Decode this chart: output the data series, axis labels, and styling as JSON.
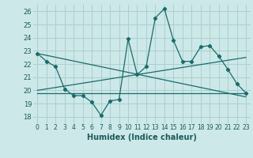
{
  "xlabel": "Humidex (Indice chaleur)",
  "background_color": "#cde8e8",
  "grid_color": "#aacfcf",
  "line_color": "#1a6b6b",
  "xlim": [
    -0.5,
    23.5
  ],
  "ylim": [
    17.5,
    26.5
  ],
  "xticks": [
    0,
    1,
    2,
    3,
    4,
    5,
    6,
    7,
    8,
    9,
    10,
    11,
    12,
    13,
    14,
    15,
    16,
    17,
    18,
    19,
    20,
    21,
    22,
    23
  ],
  "yticks": [
    18,
    19,
    20,
    21,
    22,
    23,
    24,
    25,
    26
  ],
  "series1_x": [
    0,
    1,
    2,
    3,
    4,
    5,
    6,
    7,
    8,
    9,
    10,
    11,
    12,
    13,
    14,
    15,
    16,
    17,
    18,
    19,
    20,
    21,
    22,
    23
  ],
  "series1_y": [
    22.8,
    22.2,
    21.8,
    20.1,
    19.6,
    19.6,
    19.1,
    18.1,
    19.2,
    19.3,
    23.9,
    21.2,
    21.8,
    25.5,
    26.2,
    23.8,
    22.2,
    22.2,
    23.3,
    23.4,
    22.6,
    21.6,
    20.5,
    19.8
  ],
  "series2_x": [
    0,
    23
  ],
  "series2_y": [
    22.8,
    19.5
  ],
  "series3_x": [
    0,
    23
  ],
  "series3_y": [
    20.0,
    22.5
  ],
  "series4_x": [
    0,
    23
  ],
  "series4_y": [
    19.8,
    19.8
  ]
}
